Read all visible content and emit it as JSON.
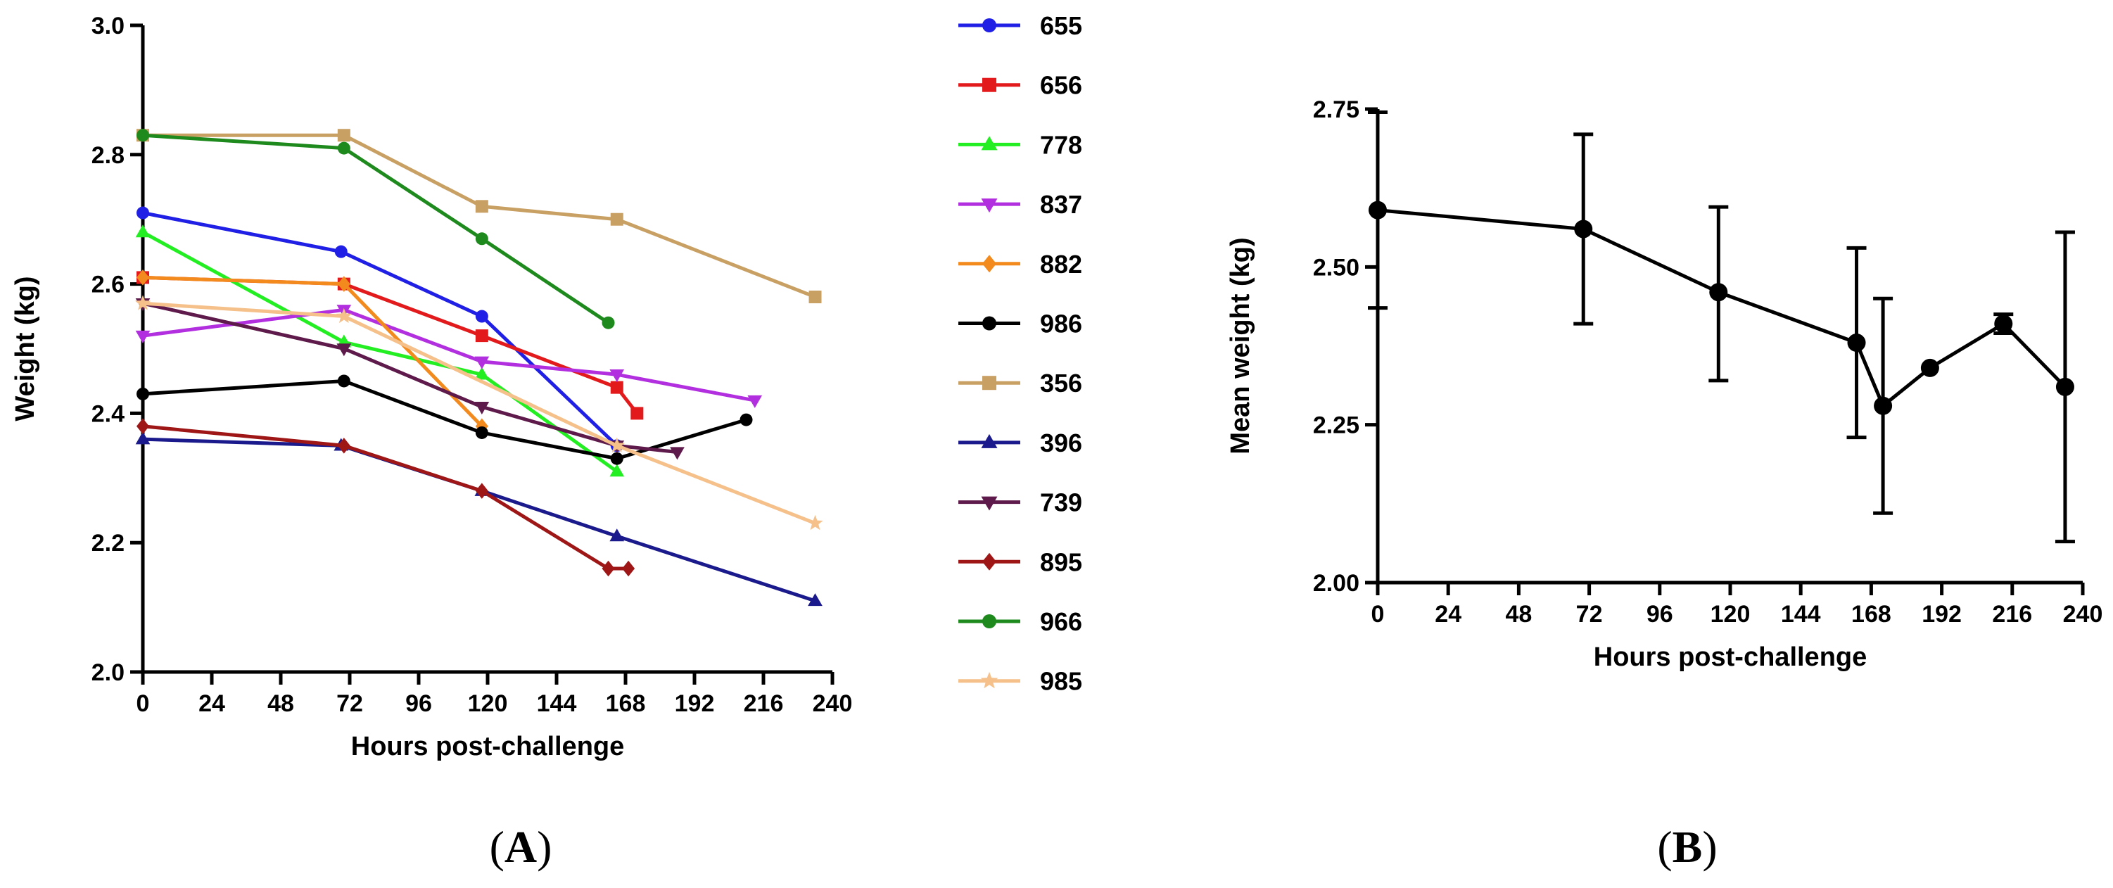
{
  "chart_data": [
    {
      "panel": "A",
      "type": "line",
      "title": "",
      "xlabel": "Hours post-challenge",
      "ylabel": "Weight (kg)",
      "xlim": [
        0,
        240
      ],
      "ylim": [
        2.0,
        3.0
      ],
      "xticks": [
        0,
        24,
        48,
        72,
        96,
        120,
        144,
        168,
        192,
        216,
        240
      ],
      "yticks": [
        2.0,
        2.2,
        2.4,
        2.6,
        2.8,
        3.0
      ],
      "ytick_labels": [
        "2.0",
        "2.2",
        "2.4",
        "2.6",
        "2.8",
        "3.0"
      ],
      "legend_position": "right",
      "series": [
        {
          "name": "655",
          "color": "#1f1fe6",
          "marker": "circle",
          "points": [
            [
              0,
              2.71
            ],
            [
              69,
              2.65
            ],
            [
              118,
              2.55
            ],
            [
              165,
              2.35
            ]
          ]
        },
        {
          "name": "656",
          "color": "#e31a1c",
          "marker": "square",
          "points": [
            [
              0,
              2.61
            ],
            [
              70,
              2.6
            ],
            [
              118,
              2.52
            ],
            [
              165,
              2.44
            ],
            [
              172,
              2.4
            ]
          ]
        },
        {
          "name": "778",
          "color": "#22ee22",
          "marker": "triangle-up",
          "points": [
            [
              0,
              2.68
            ],
            [
              70,
              2.51
            ],
            [
              118,
              2.46
            ],
            [
              165,
              2.31
            ]
          ]
        },
        {
          "name": "837",
          "color": "#b22fe0",
          "marker": "triangle-down",
          "points": [
            [
              0,
              2.52
            ],
            [
              70,
              2.56
            ],
            [
              118,
              2.48
            ],
            [
              165,
              2.46
            ],
            [
              213,
              2.42
            ]
          ]
        },
        {
          "name": "882",
          "color": "#f28a1e",
          "marker": "diamond",
          "points": [
            [
              0,
              2.61
            ],
            [
              70,
              2.6
            ],
            [
              118,
              2.38
            ]
          ]
        },
        {
          "name": "986",
          "color": "#000000",
          "marker": "circle",
          "points": [
            [
              0,
              2.43
            ],
            [
              70,
              2.45
            ],
            [
              118,
              2.37
            ],
            [
              165,
              2.33
            ],
            [
              210,
              2.39
            ]
          ]
        },
        {
          "name": "356",
          "color": "#c9a063",
          "marker": "square",
          "points": [
            [
              0,
              2.83
            ],
            [
              70,
              2.83
            ],
            [
              118,
              2.72
            ],
            [
              165,
              2.7
            ],
            [
              234,
              2.58
            ]
          ]
        },
        {
          "name": "396",
          "color": "#1a1a8c",
          "marker": "triangle-up",
          "points": [
            [
              0,
              2.36
            ],
            [
              69,
              2.35
            ],
            [
              118,
              2.28
            ],
            [
              165,
              2.21
            ],
            [
              234,
              2.11
            ]
          ]
        },
        {
          "name": "739",
          "color": "#5e1a4a",
          "marker": "triangle-down",
          "points": [
            [
              0,
              2.57
            ],
            [
              70,
              2.5
            ],
            [
              118,
              2.41
            ],
            [
              165,
              2.35
            ],
            [
              186,
              2.34
            ]
          ]
        },
        {
          "name": "895",
          "color": "#9e1616",
          "marker": "diamond",
          "points": [
            [
              0,
              2.38
            ],
            [
              70,
              2.35
            ],
            [
              118,
              2.28
            ],
            [
              162,
              2.16
            ],
            [
              169,
              2.16
            ]
          ]
        },
        {
          "name": "966",
          "color": "#1e8a1e",
          "marker": "circle",
          "points": [
            [
              0,
              2.83
            ],
            [
              70,
              2.81
            ],
            [
              118,
              2.67
            ],
            [
              162,
              2.54
            ]
          ]
        },
        {
          "name": "985",
          "color": "#f5c08a",
          "marker": "star",
          "points": [
            [
              0,
              2.57
            ],
            [
              70,
              2.55
            ],
            [
              165,
              2.35
            ],
            [
              234,
              2.23
            ]
          ]
        }
      ]
    },
    {
      "panel": "B",
      "type": "line",
      "title": "",
      "xlabel": "Hours post-challenge",
      "ylabel": "Mean weight (kg)",
      "xlim": [
        0,
        240
      ],
      "ylim": [
        2.0,
        2.75
      ],
      "xticks": [
        0,
        24,
        48,
        72,
        96,
        120,
        144,
        168,
        192,
        216,
        240
      ],
      "yticks": [
        2.0,
        2.25,
        2.5,
        2.75
      ],
      "ytick_labels": [
        "2.00",
        "2.25",
        "2.50",
        "2.75"
      ],
      "series": [
        {
          "name": "Mean weight",
          "color": "#000000",
          "marker": "circle",
          "points": [
            [
              0,
              2.59
            ],
            [
              70,
              2.56
            ],
            [
              116,
              2.46
            ],
            [
              163,
              2.38
            ],
            [
              172,
              2.28
            ],
            [
              188,
              2.34
            ],
            [
              213,
              2.41
            ],
            [
              234,
              2.31
            ]
          ],
          "error": [
            [
              2.435,
              2.745
            ],
            [
              2.41,
              2.71
            ],
            [
              2.32,
              2.595
            ],
            [
              2.23,
              2.53
            ],
            [
              2.11,
              2.45
            ],
            [
              2.34,
              2.34
            ],
            [
              2.395,
              2.425
            ],
            [
              2.065,
              2.555
            ]
          ]
        }
      ]
    }
  ],
  "panels": {
    "a_label": "A",
    "b_label": "B"
  }
}
